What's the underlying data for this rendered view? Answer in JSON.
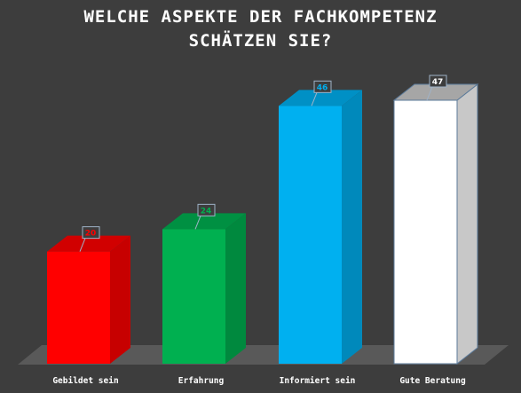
{
  "chart_data": {
    "type": "bar",
    "title_lines": [
      "WELCHE ASPEKTE DER FACHKOMPETENZ",
      "SCHÄTZEN SIE?"
    ],
    "categories": [
      "Gebildet sein",
      "Erfahrung",
      "Informiert sein",
      "Gute Beratung"
    ],
    "values": [
      20,
      24,
      46,
      47
    ],
    "colors": [
      "#ff0000",
      "#00b050",
      "#00b0f0",
      "#ffffff"
    ],
    "label_colors": [
      "#ff0000",
      "#00b050",
      "#00b0f0",
      "#ffffff"
    ],
    "ylim": [
      0,
      50
    ],
    "grid": false,
    "legend": "none",
    "style": "3d-columns"
  }
}
